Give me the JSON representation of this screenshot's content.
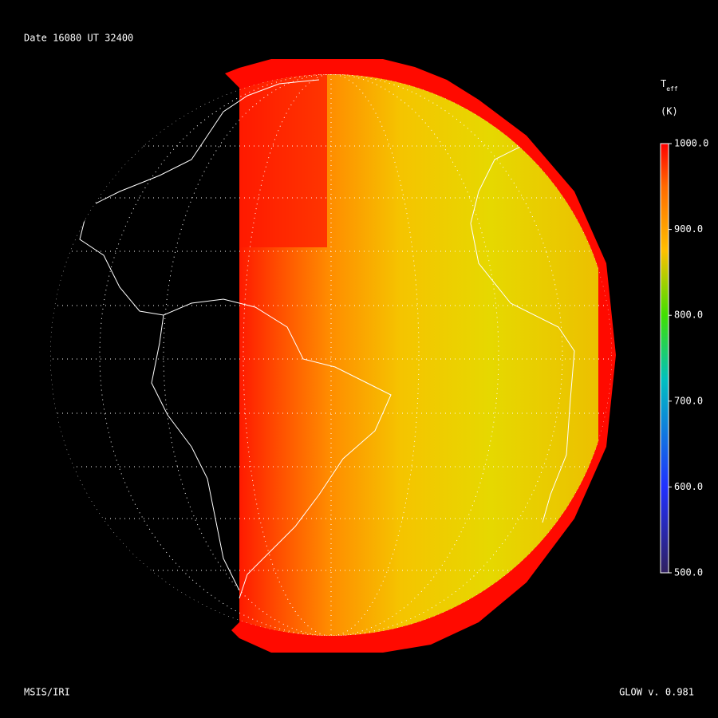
{
  "header": {
    "date_label": "Date 16080  UT 32400"
  },
  "colorbar": {
    "title": "T",
    "title_sub": "eff",
    "unit": "(K)",
    "range": [
      500,
      1000
    ],
    "ticks": [
      {
        "value": 1000,
        "label": "1000.0"
      },
      {
        "value": 900,
        "label": "900.0"
      },
      {
        "value": 800,
        "label": "800.0"
      },
      {
        "value": 700,
        "label": "700.0"
      },
      {
        "value": 600,
        "label": "600.0"
      },
      {
        "value": 500,
        "label": "500.0"
      }
    ]
  },
  "footer": {
    "left": "MSIS/IRI",
    "right": "GLOW v. 0.981"
  }
}
